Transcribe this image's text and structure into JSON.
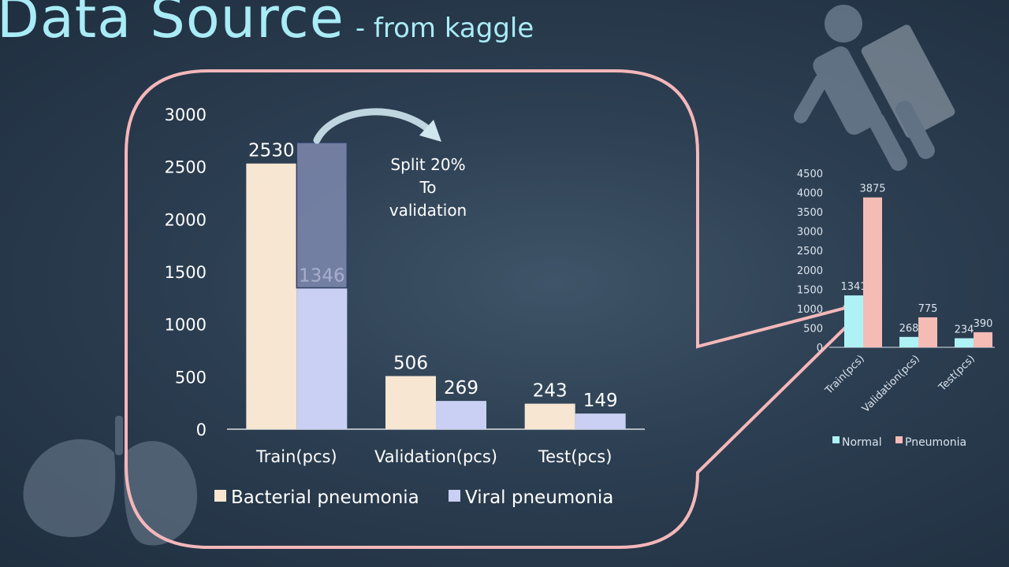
{
  "slide": {
    "title": "Data Source",
    "subtitle": "- from kaggle",
    "note_lines": [
      "Split 20%",
      "To",
      "validation"
    ],
    "icons": [
      "xray-person-icon",
      "lungs-icon"
    ]
  },
  "colors": {
    "background": "#2c3e51",
    "title": "#a9ecf6",
    "bacterial": "#f7e6d2",
    "viral": "#c9d0f4",
    "normal": "#aef2f6",
    "pneumonia": "#f5bcb6",
    "callout": "#f4b7ba"
  },
  "chart_data": [
    {
      "type": "bar",
      "categories": [
        "Train(pcs)",
        "Validation(pcs)",
        "Test(pcs)"
      ],
      "series": [
        {
          "name": "Bacterial pneumonia",
          "values": [
            2530,
            506,
            243
          ]
        },
        {
          "name": "Viral pneumonia",
          "values": [
            1346,
            269,
            149
          ]
        }
      ],
      "split_overlay": {
        "category": "Train(pcs)",
        "from": 1346,
        "to": 2730
      },
      "yticks": [
        0,
        500,
        1000,
        1500,
        2000,
        2500,
        3000
      ],
      "ylim": [
        0,
        3000
      ],
      "legend": "bottom",
      "grid": false
    },
    {
      "type": "bar",
      "categories": [
        "Train(pcs)",
        "Validation(pcs)",
        "Test(pcs)"
      ],
      "series": [
        {
          "name": "Normal",
          "values": [
            1341,
            268,
            234
          ]
        },
        {
          "name": "Pneumonia",
          "values": [
            3875,
            775,
            390
          ]
        }
      ],
      "yticks": [
        0,
        500,
        1000,
        1500,
        2000,
        2500,
        3000,
        3500,
        4000,
        4500
      ],
      "ylim": [
        0,
        4500
      ],
      "legend": "bottom",
      "grid": false
    }
  ]
}
